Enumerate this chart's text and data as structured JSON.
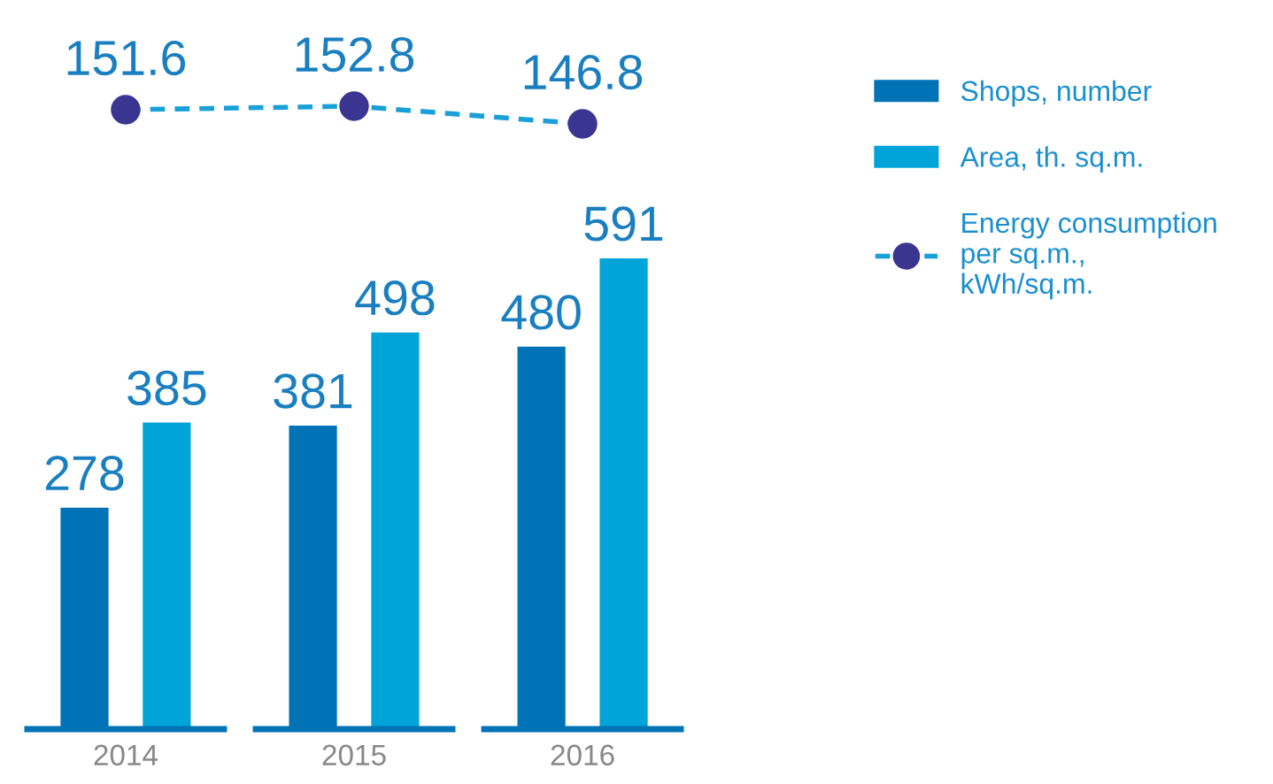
{
  "chart_data": [
    {
      "type": "line",
      "categories": [
        "2014",
        "2015",
        "2016"
      ],
      "series": [
        {
          "name": "Energy consumption per sq.m., kWh/sq.m.",
          "color": "#1aa0d8",
          "colors": [
            "#3b3592",
            "#3b3592",
            "#3b3592"
          ],
          "values": [
            151.6,
            152.8,
            146.8
          ]
        }
      ],
      "marker": "circle",
      "line_style": "dashed",
      "tick_labels": false,
      "data_labels": true,
      "legend": "right"
    },
    {
      "type": "bar",
      "categories": [
        "2014",
        "2015",
        "2016"
      ],
      "series": [
        {
          "name": "Shops, number",
          "color": "#0073b6",
          "values": [
            278,
            381,
            480
          ]
        },
        {
          "name": "Area, th. sq.m.",
          "color": "#00a4d8",
          "values": [
            385,
            498,
            591
          ]
        }
      ],
      "tick_labels": "x",
      "data_labels": true,
      "legend": "right"
    }
  ]
}
